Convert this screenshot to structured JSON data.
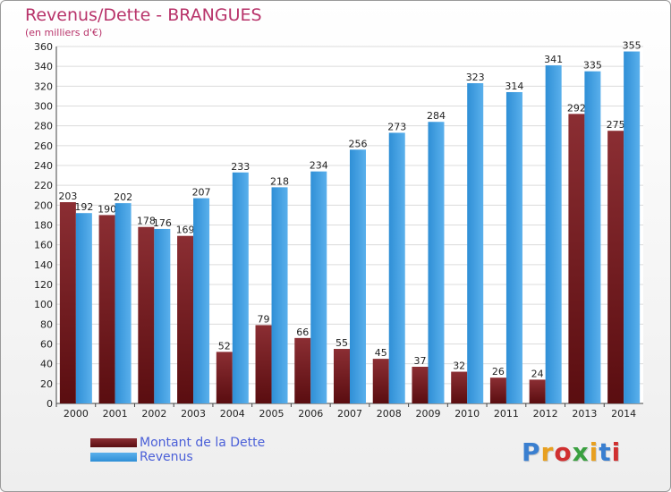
{
  "header": {
    "title": "Revenus/Dette - BRANGUES",
    "subtitle": "(en milliers d'€)"
  },
  "colors": {
    "dette": "#7a1e22",
    "revenus": "#3d9ee0",
    "title": "#b8336a",
    "legend_text": "#4a5fd8"
  },
  "logo": {
    "text": "Proxiti",
    "letter_colors": [
      "#3a7fd0",
      "#e8a020",
      "#d03030",
      "#3aa040",
      "#e8a020",
      "#3a7fd0",
      "#d03030"
    ]
  },
  "chart_data": {
    "type": "bar",
    "categories": [
      "2000",
      "2001",
      "2002",
      "2003",
      "2004",
      "2005",
      "2006",
      "2007",
      "2008",
      "2009",
      "2010",
      "2011",
      "2012",
      "2013",
      "2014"
    ],
    "series": [
      {
        "name": "Montant de la Dette",
        "values": [
          203,
          190,
          178,
          169,
          52,
          79,
          66,
          55,
          45,
          37,
          32,
          26,
          24,
          292,
          275
        ]
      },
      {
        "name": "Revenus",
        "values": [
          192,
          202,
          176,
          207,
          233,
          218,
          234,
          256,
          273,
          284,
          323,
          314,
          341,
          335,
          355
        ]
      }
    ],
    "ylim": [
      0,
      360
    ],
    "yticks": [
      0,
      20,
      40,
      60,
      80,
      100,
      120,
      140,
      160,
      180,
      200,
      220,
      240,
      260,
      280,
      300,
      320,
      340,
      360
    ],
    "grid": true,
    "legend_position": "bottom-left"
  }
}
